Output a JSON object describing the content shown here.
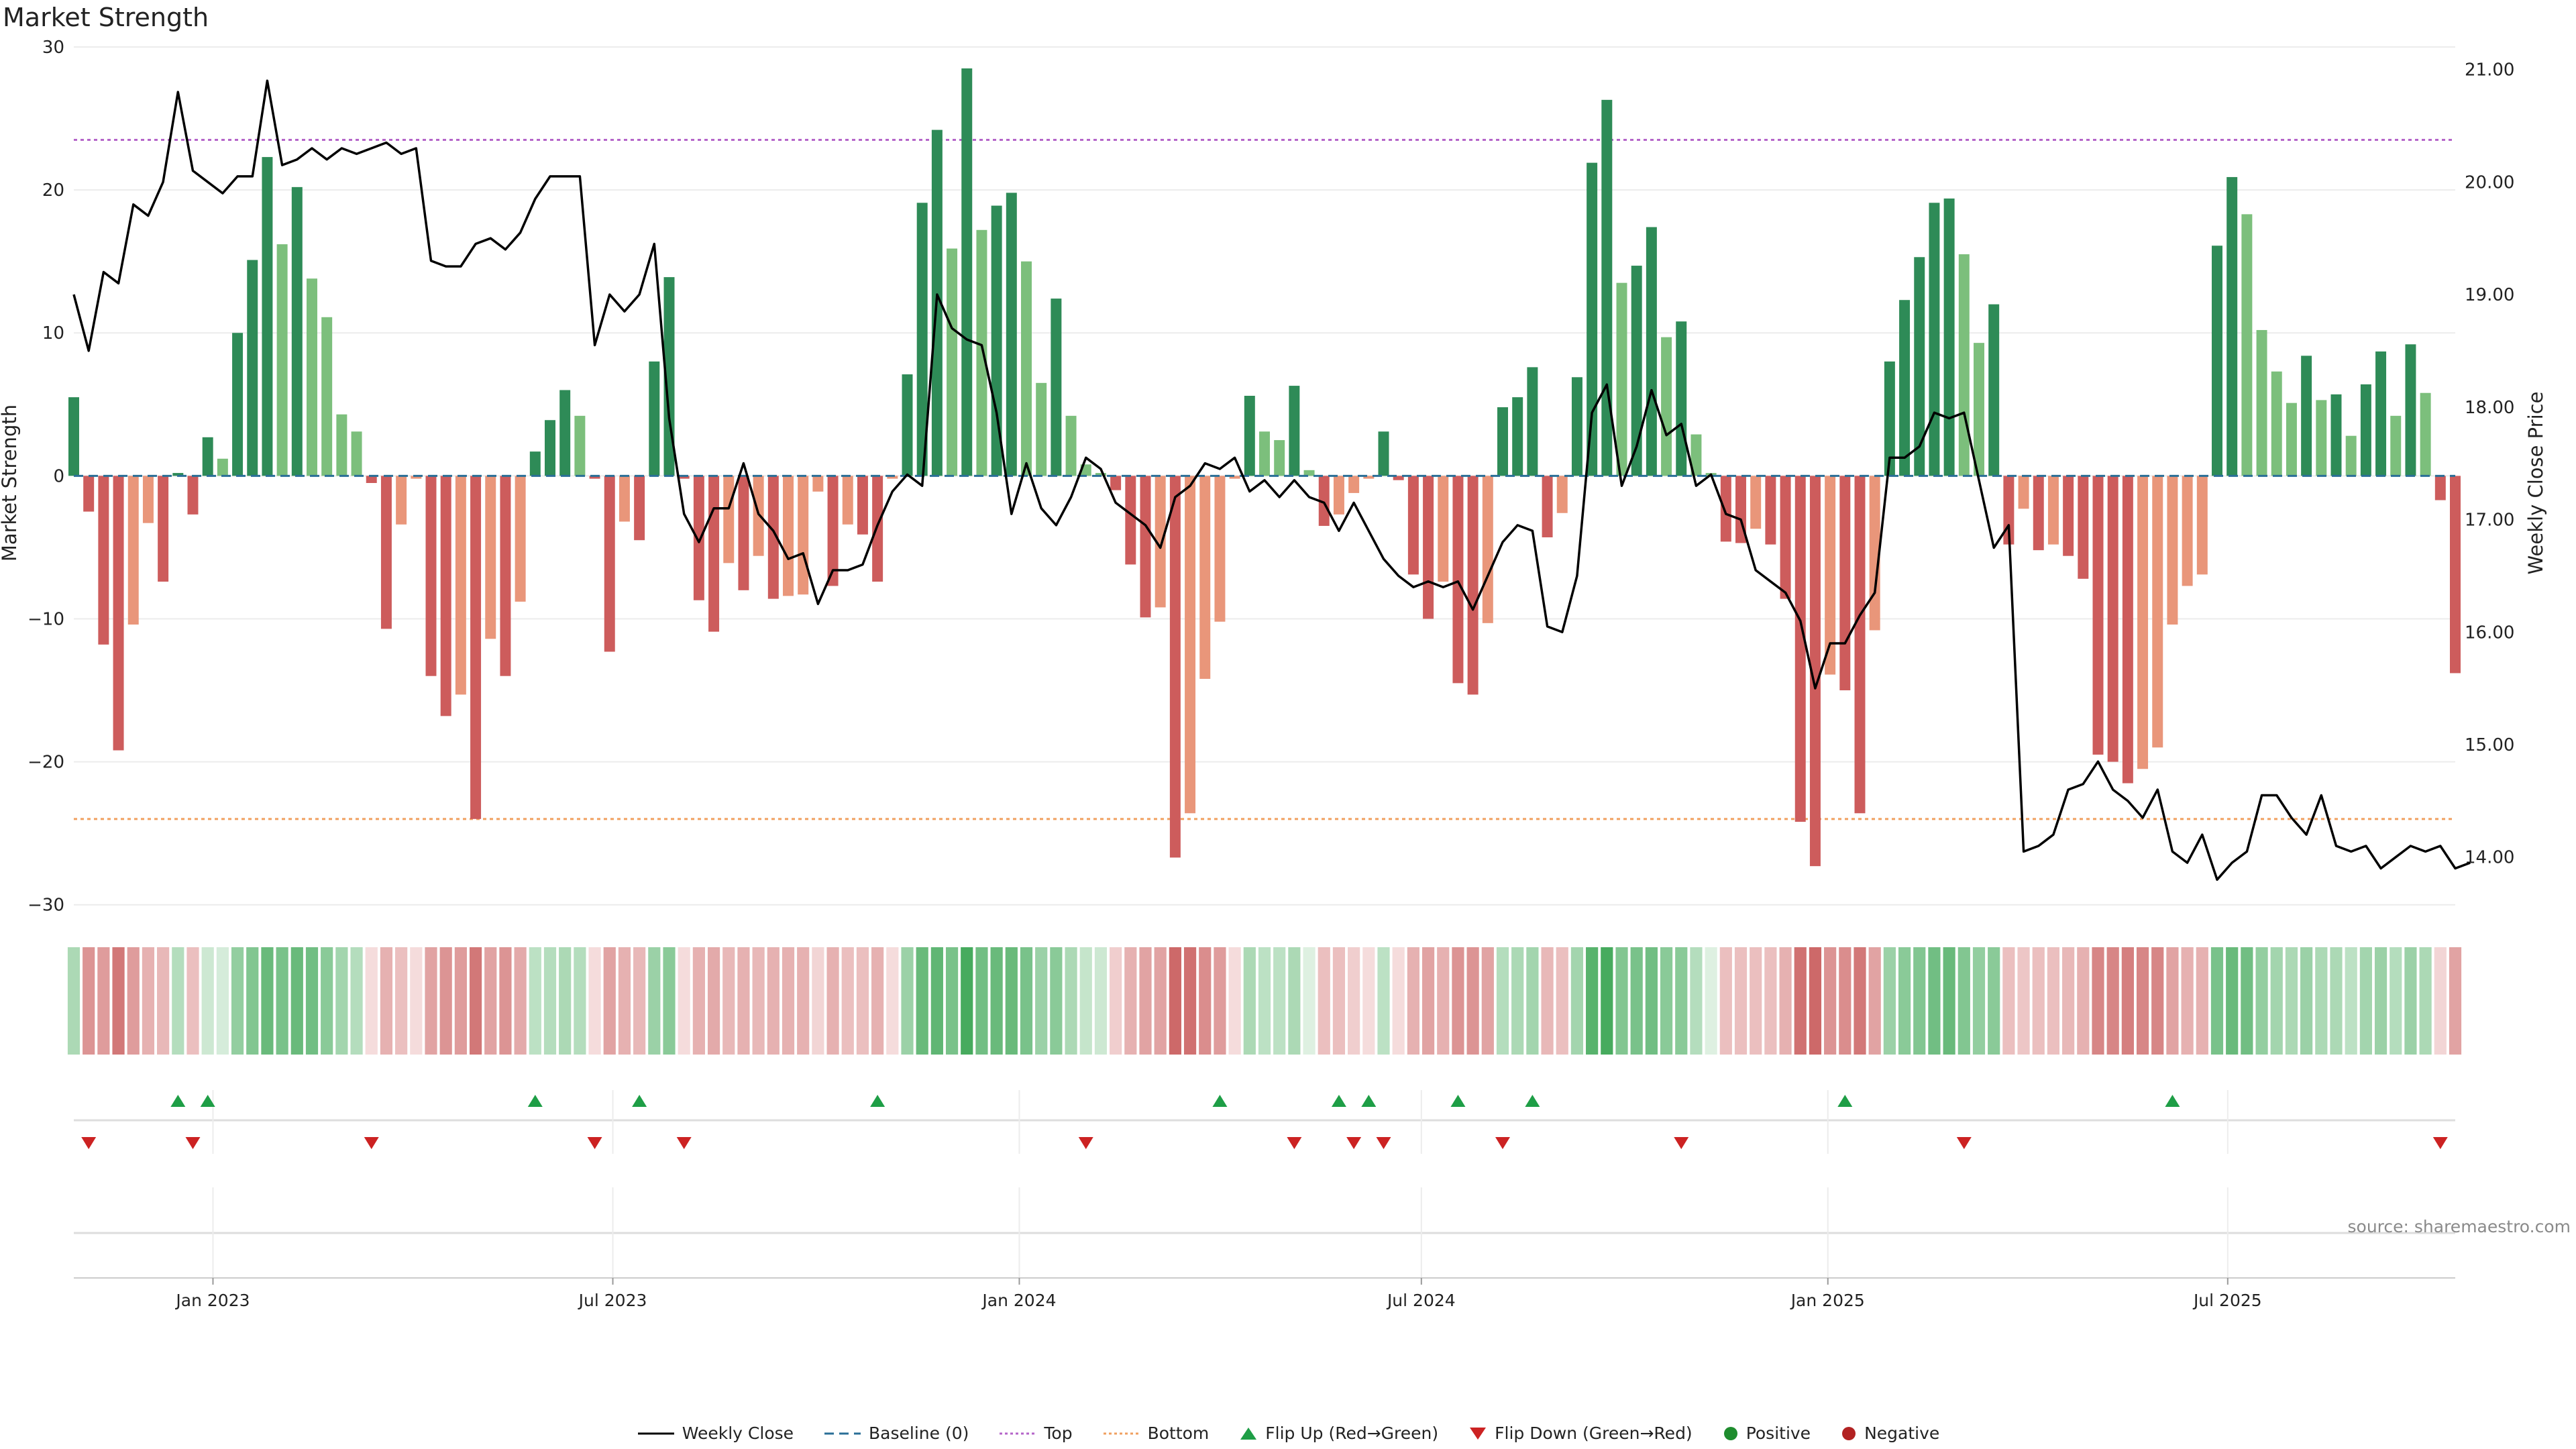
{
  "chart_data": {
    "type": "bar",
    "title": "Market Strength",
    "ylabel": "Market Strength",
    "y2label": "Weekly Close Price",
    "ylim": [
      -31,
      30
    ],
    "y2lim": [
      13.45,
      21.2
    ],
    "yticks": [
      "30",
      "20",
      "10",
      "0",
      "−10",
      "−20",
      "−30"
    ],
    "y2ticks": [
      "21.00",
      "20.00",
      "19.00",
      "18.00",
      "17.00",
      "16.00",
      "15.00",
      "14.00"
    ],
    "x_start": "2022-10-30",
    "x_end": "2025-10-12",
    "xticks": [
      {
        "label": "Jan 2023",
        "date": "2023-01-01"
      },
      {
        "label": "Jul 2023",
        "date": "2023-07-01"
      },
      {
        "label": "Jan 2024",
        "date": "2024-01-01"
      },
      {
        "label": "Jul 2024",
        "date": "2024-07-01"
      },
      {
        "label": "Jan 2025",
        "date": "2025-01-01"
      },
      {
        "label": "Jul 2025",
        "date": "2025-07-01"
      }
    ],
    "top_line": 23.5,
    "bottom_line": -24,
    "strength": [
      5.5,
      -2.5,
      -11.8,
      -19.2,
      -10.4,
      -3.3,
      -7.4,
      0.2,
      -2.7,
      2.7,
      1.2,
      10,
      15.1,
      22.3,
      16.2,
      20.2,
      13.8,
      11.1,
      4.3,
      3.1,
      -0.5,
      -10.7,
      -3.4,
      -0.2,
      -14,
      -16.8,
      -15.3,
      -24,
      -11.4,
      -14,
      -8.8,
      1.7,
      3.9,
      6,
      4.2,
      -0.2,
      -12.3,
      -3.2,
      -4.5,
      8,
      13.9,
      -0.2,
      -8.7,
      -10.9,
      -6.1,
      -8,
      -5.6,
      -8.6,
      -8.4,
      -8.3,
      -1.1,
      -7.7,
      -3.4,
      -4.1,
      -7.4,
      -0.2,
      7.1,
      19.1,
      24.2,
      15.9,
      28.5,
      17.2,
      18.9,
      19.8,
      15,
      6.5,
      12.4,
      4.2,
      0.8,
      0.2,
      -1,
      -6.2,
      -9.9,
      -9.2,
      -26.7,
      -23.6,
      -14.2,
      -10.2,
      -0.2,
      5.6,
      3.1,
      2.5,
      6.3,
      0.4,
      -3.5,
      -2.7,
      -1.2,
      -0.2,
      3.1,
      -0.3,
      -6.9,
      -10,
      -7.4,
      -14.5,
      -15.3,
      -10.3,
      4.8,
      5.5,
      7.6,
      -4.3,
      -2.6,
      6.9,
      21.9,
      26.3,
      13.5,
      14.7,
      17.4,
      9.7,
      10.8,
      2.9,
      0.2,
      -4.6,
      -4.7,
      -3.7,
      -4.8,
      -8.6,
      -24.2,
      -27.3,
      -13.9,
      -15,
      -23.6,
      -10.8,
      8,
      12.3,
      15.3,
      19.1,
      19.4,
      15.5,
      9.3,
      12,
      -4.8,
      -2.3,
      -5.2,
      -4.8,
      -5.6,
      -7.2,
      -19.5,
      -20,
      -21.5,
      -20.5,
      -19,
      -10.4,
      -7.7,
      -6.9,
      16.1,
      20.9,
      18.3,
      10.2,
      7.3,
      5.1,
      8.4,
      5.3,
      5.7,
      2.8,
      6.4,
      8.7,
      4.2,
      9.2,
      5.8,
      -1.7,
      -13.8
    ],
    "price": [
      19,
      18.5,
      19.2,
      19.1,
      19.8,
      19.7,
      20,
      20.8,
      20.1,
      20,
      19.9,
      20.05,
      20.05,
      20.9,
      20.15,
      20.2,
      20.3,
      20.2,
      20.3,
      20.25,
      20.3,
      20.35,
      20.25,
      20.3,
      19.3,
      19.25,
      19.25,
      19.45,
      19.5,
      19.4,
      19.55,
      19.85,
      20.05,
      20.05,
      20.05,
      18.55,
      19,
      18.85,
      19,
      19.45,
      17.9,
      17.05,
      16.8,
      17.1,
      17.1,
      17.5,
      17.05,
      16.9,
      16.65,
      16.7,
      16.25,
      16.55,
      16.55,
      16.6,
      16.95,
      17.25,
      17.4,
      17.3,
      19,
      18.7,
      18.6,
      18.55,
      17.95,
      17.05,
      17.5,
      17.1,
      16.95,
      17.2,
      17.55,
      17.45,
      17.15,
      17.05,
      16.95,
      16.75,
      17.2,
      17.3,
      17.5,
      17.45,
      17.55,
      17.25,
      17.35,
      17.2,
      17.35,
      17.2,
      17.15,
      16.9,
      17.15,
      16.9,
      16.65,
      16.5,
      16.4,
      16.45,
      16.4,
      16.45,
      16.2,
      16.5,
      16.8,
      16.95,
      16.9,
      16.05,
      16,
      16.5,
      17.95,
      18.2,
      17.3,
      17.65,
      18.15,
      17.75,
      17.85,
      17.3,
      17.4,
      17.05,
      17,
      16.55,
      16.45,
      16.35,
      16.1,
      15.5,
      15.9,
      15.9,
      16.15,
      16.35,
      17.55,
      17.55,
      17.65,
      17.95,
      17.9,
      17.95,
      17.35,
      16.75,
      16.95,
      14.05,
      14.1,
      14.2,
      14.6,
      14.65,
      14.85,
      14.6,
      14.5,
      14.35,
      14.6,
      14.05,
      13.95,
      14.2,
      13.8,
      13.95,
      14.05,
      14.55,
      14.55,
      14.35,
      14.2,
      14.55,
      14.1,
      14.05,
      14.1,
      13.9,
      14,
      14.1,
      14.05,
      14.1,
      13.9,
      13.95
    ],
    "heat_values": [
      0.35,
      0.55,
      0.5,
      0.75,
      0.5,
      0.35,
      0.3,
      0.3,
      0.25,
      0.15,
      0.1,
      0.5,
      0.6,
      0.75,
      0.65,
      0.75,
      0.7,
      0.55,
      0.4,
      0.3,
      0.05,
      0.35,
      0.25,
      0.05,
      0.45,
      0.55,
      0.5,
      0.75,
      0.45,
      0.55,
      0.4,
      0.25,
      0.3,
      0.35,
      0.3,
      0.05,
      0.45,
      0.35,
      0.3,
      0.45,
      0.55,
      0.05,
      0.35,
      0.4,
      0.3,
      0.35,
      0.3,
      0.35,
      0.35,
      0.35,
      0.1,
      0.35,
      0.25,
      0.25,
      0.35,
      0.05,
      0.45,
      0.75,
      0.8,
      0.65,
      0.95,
      0.7,
      0.75,
      0.75,
      0.65,
      0.45,
      0.55,
      0.35,
      0.2,
      0.15,
      0.15,
      0.35,
      0.45,
      0.45,
      0.85,
      0.8,
      0.6,
      0.5,
      0.05,
      0.35,
      0.25,
      0.25,
      0.35,
      0.05,
      0.25,
      0.25,
      0.15,
      0.05,
      0.25,
      0.05,
      0.35,
      0.45,
      0.35,
      0.55,
      0.55,
      0.45,
      0.3,
      0.35,
      0.4,
      0.3,
      0.25,
      0.4,
      0.85,
      0.95,
      0.6,
      0.65,
      0.7,
      0.55,
      0.55,
      0.3,
      0.05,
      0.25,
      0.25,
      0.25,
      0.25,
      0.35,
      0.8,
      0.85,
      0.55,
      0.6,
      0.75,
      0.45,
      0.45,
      0.55,
      0.6,
      0.7,
      0.75,
      0.6,
      0.5,
      0.55,
      0.25,
      0.2,
      0.25,
      0.25,
      0.3,
      0.35,
      0.65,
      0.65,
      0.7,
      0.65,
      0.65,
      0.45,
      0.35,
      0.35,
      0.65,
      0.75,
      0.7,
      0.5,
      0.4,
      0.35,
      0.45,
      0.35,
      0.35,
      0.25,
      0.4,
      0.45,
      0.3,
      0.45,
      0.35,
      0.1,
      0.45
    ],
    "flip_up_weeks": [
      7,
      9,
      31,
      38,
      54,
      77,
      85,
      87,
      93,
      98,
      119,
      141
    ],
    "flip_down_weeks": [
      1,
      8,
      20,
      35,
      41,
      68,
      82,
      86,
      88,
      96,
      108,
      127,
      159
    ],
    "colors": {
      "strong_green": "#2e8b57",
      "light_green": "#7cbf7c",
      "strong_red": "#cd5c5c",
      "light_red": "#e9967a",
      "price_line": "#000000",
      "baseline": "#2a6f97",
      "top_line": "#b565c9",
      "bottom_line": "#f0a060",
      "flip_up": "#1e9e46",
      "flip_down": "#cc2222",
      "positive": "#1e8c2e",
      "negative": "#b22222"
    }
  },
  "source_text": "source: sharemaestro.com",
  "legend": [
    {
      "label": "Weekly Close",
      "icon": "solid-line"
    },
    {
      "label": "Baseline (0)",
      "icon": "dashed-line"
    },
    {
      "label": "Top",
      "icon": "dotted-line-purple"
    },
    {
      "label": "Bottom",
      "icon": "dotted-line-orange"
    },
    {
      "label": "Flip Up (Red→Green)",
      "icon": "triangle-up"
    },
    {
      "label": "Flip Down (Green→Red)",
      "icon": "triangle-down"
    },
    {
      "label": "Positive",
      "icon": "dot-green"
    },
    {
      "label": "Negative",
      "icon": "dot-red"
    }
  ]
}
